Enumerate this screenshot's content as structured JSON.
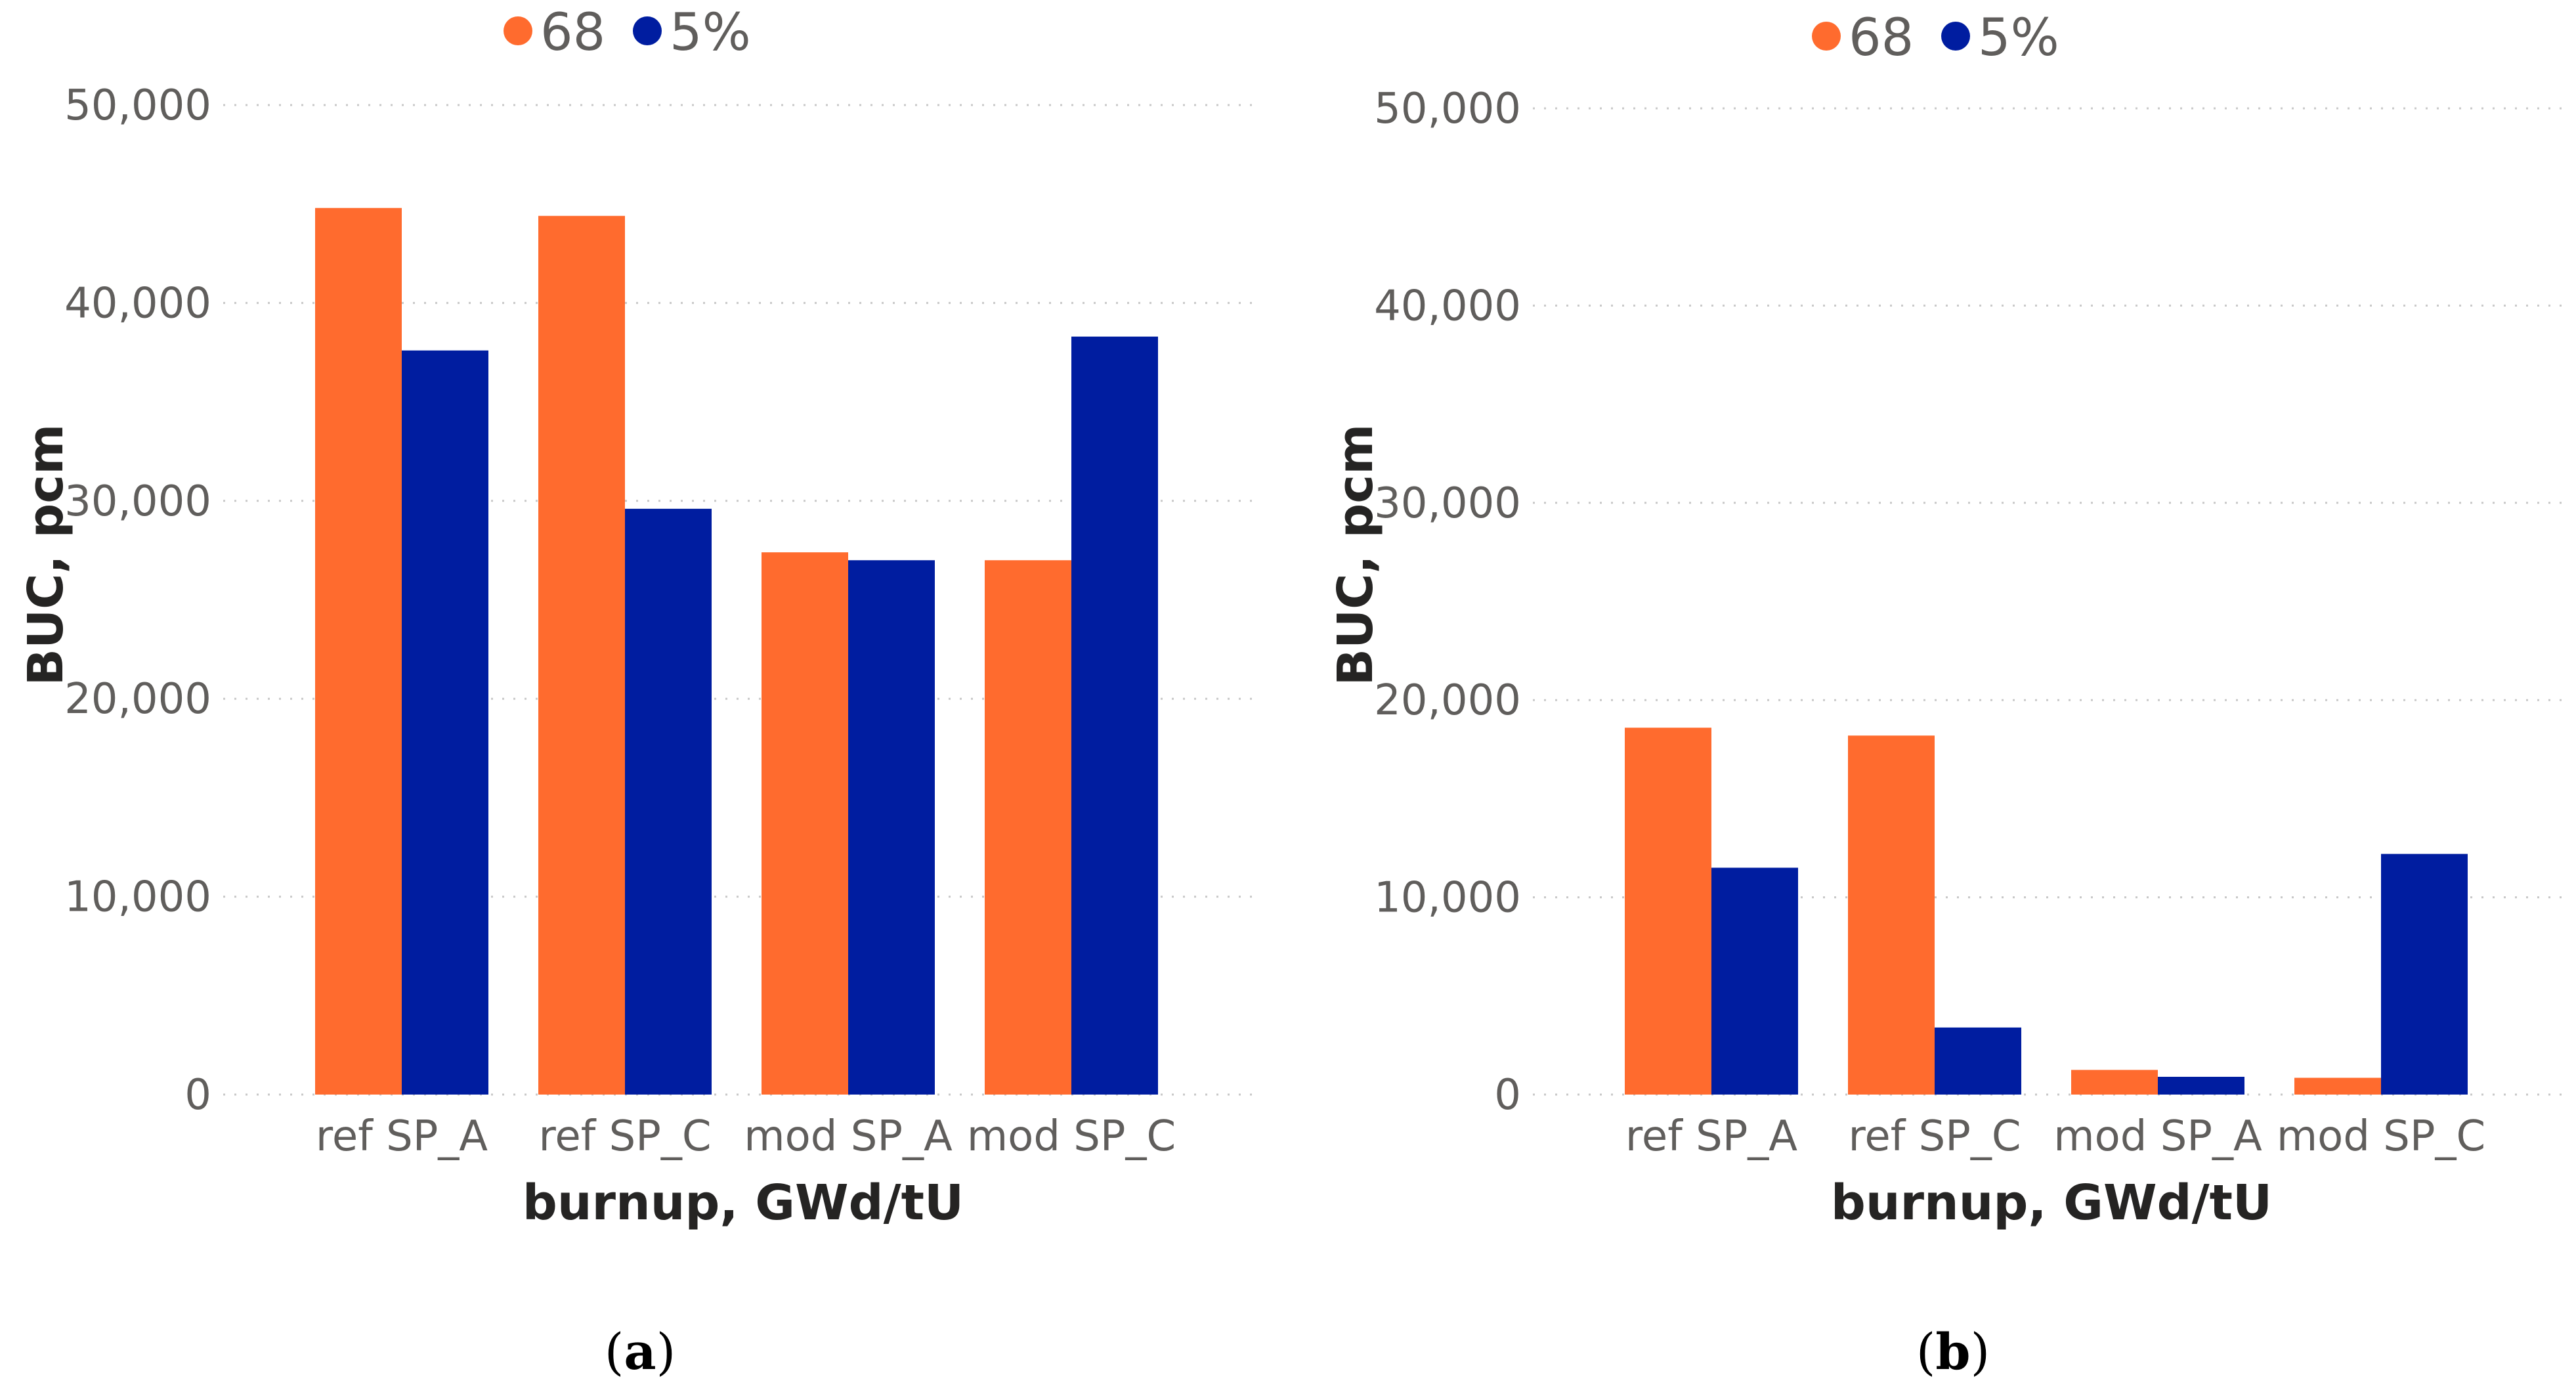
{
  "colors": {
    "s1": "#ff6b2e",
    "s2": "#001da0"
  },
  "chart_data": [
    {
      "type": "bar",
      "label": "a",
      "categories": [
        "ref SP_A",
        "ref SP_C",
        "mod SP_A",
        "mod SP_C"
      ],
      "series": [
        {
          "name": "68",
          "values": [
            44800,
            44400,
            27400,
            27000
          ]
        },
        {
          "name": "5%",
          "values": [
            37600,
            29600,
            27000,
            38300
          ]
        }
      ],
      "xlabel": "burnup, GWd/tU",
      "ylabel": "BUC, pcm",
      "ylim": [
        0,
        50000
      ],
      "yticks": [
        "0",
        "10,000",
        "20,000",
        "30,000",
        "40,000",
        "50,000"
      ],
      "ytick_values": [
        0,
        10000,
        20000,
        30000,
        40000,
        50000
      ],
      "grid": true,
      "legend": "top"
    },
    {
      "type": "bar",
      "label": "b",
      "categories": [
        "ref SP_A",
        "ref SP_C",
        "mod SP_A",
        "mod SP_C"
      ],
      "series": [
        {
          "name": "68",
          "values": [
            18600,
            18200,
            1250,
            850
          ]
        },
        {
          "name": "5%",
          "values": [
            11500,
            3400,
            900,
            12200
          ]
        }
      ],
      "xlabel": "burnup, GWd/tU",
      "ylabel": "BUC, pcm",
      "ylim": [
        0,
        50000
      ],
      "yticks": [
        "0",
        "10,000",
        "20,000",
        "30,000",
        "40,000",
        "50,000"
      ],
      "ytick_values": [
        0,
        10000,
        20000,
        30000,
        40000,
        50000
      ],
      "grid": true,
      "legend": "top"
    }
  ]
}
